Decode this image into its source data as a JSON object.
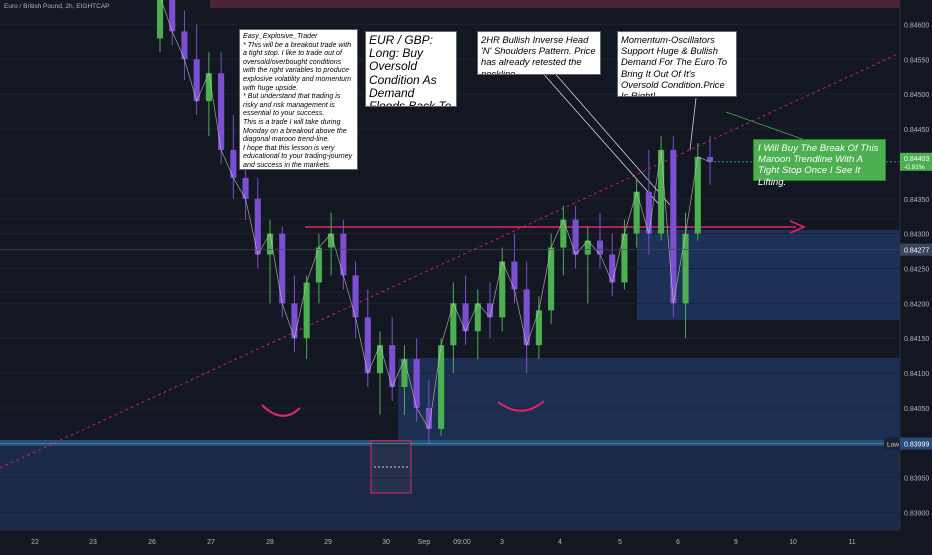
{
  "symbol_title": "Euro / British Pound, 2h, EIGHTCAP",
  "notes": {
    "trader_note": [
      "Easy_Explosive_Trader",
      "* This will be a breakout trade with a tight stop. I like to trade out of oversold/overbought conditions with the right variables to produce explosive volatility and momentum with huge upside.",
      "* But understand that trading is risky and risk management is essential to your success.",
      "This is a trade I will take during Monday on a breakout above the diagonal maroon trend-line.",
      "I hope that this lesson is very educational to your trading-journey and success in the markets."
    ],
    "title_note": "EUR / GBP: Long: Buy Oversold Condition As Demand Floods Back To The Euro",
    "pattern_note": "2HR Bullish Inverse Head 'N' Shoulders Pattern. Price has already retested the neckline.",
    "momentum_note": "Momentum-Oscillators Support Huge & Bullish Demand For The Euro To Bring It Out Of It's Oversold Condition.Price Is Right!",
    "green_note": "I Will Buy The Break Of This Maroon Trendline With A Tight Stop Once I See  It Lifting."
  },
  "price_axis": {
    "ticks": [
      "0.84600",
      "0.84550",
      "0.84500",
      "0.84450",
      "0.84350",
      "0.84300",
      "0.84250",
      "0.84200",
      "0.84150",
      "0.84100",
      "0.84050",
      "0.83950",
      "0.83900"
    ],
    "current_price_label": "0.84403",
    "current_change_label": "-0.91%",
    "level_label": "0.84277",
    "low_tag": "Low",
    "low_value": "0.83999"
  },
  "time_axis": {
    "ticks": [
      "22",
      "23",
      "26",
      "27",
      "28",
      "29",
      "30",
      "Sep",
      "09:00",
      "3",
      "4",
      "5",
      "6",
      "9",
      "10",
      "11"
    ]
  },
  "colors": {
    "background": "#131722",
    "bull": "#4caf50",
    "bear": "#7b4fd1",
    "maroon": "#e0246e",
    "zone": "#1f3358",
    "current_price": "#26a69a"
  },
  "chart_data": {
    "type": "candlestick",
    "title": "Euro / British Pound, 2h, EIGHTCAP",
    "xlabel": "",
    "ylabel": "",
    "ylim": [
      0.83875,
      0.84635
    ],
    "x_ticks": [
      "22",
      "23",
      "26",
      "27",
      "28",
      "29",
      "30",
      "Sep",
      "09:00",
      "3",
      "4",
      "5",
      "6",
      "9",
      "10",
      "11"
    ],
    "series": [
      {
        "values": [
          [
            0.8458,
            0.84655,
            0.8456,
            0.8464
          ],
          [
            0.8464,
            0.84655,
            0.8457,
            0.8459
          ],
          [
            0.8459,
            0.8462,
            0.8452,
            0.8455
          ],
          [
            0.8455,
            0.846,
            0.8447,
            0.8449
          ],
          [
            0.8449,
            0.8456,
            0.8444,
            0.8453
          ],
          [
            0.8453,
            0.8456,
            0.844,
            0.8442
          ],
          [
            0.8442,
            0.8447,
            0.8435,
            0.8438
          ],
          [
            0.8438,
            0.8442,
            0.8432,
            0.8435
          ],
          [
            0.8435,
            0.8438,
            0.8425,
            0.8427
          ],
          [
            0.8427,
            0.8432,
            0.842,
            0.843
          ],
          [
            0.843,
            0.8431,
            0.8418,
            0.842
          ],
          [
            0.842,
            0.8424,
            0.8413,
            0.8415
          ],
          [
            0.8415,
            0.8424,
            0.8412,
            0.8423
          ],
          [
            0.8423,
            0.843,
            0.842,
            0.8428
          ],
          [
            0.8428,
            0.8433,
            0.8424,
            0.843
          ],
          [
            0.843,
            0.8432,
            0.8422,
            0.8424
          ],
          [
            0.8424,
            0.8426,
            0.8415,
            0.8418
          ],
          [
            0.8418,
            0.8422,
            0.8408,
            0.841
          ],
          [
            0.841,
            0.8416,
            0.8404,
            0.8414
          ],
          [
            0.8414,
            0.8418,
            0.8406,
            0.8408
          ],
          [
            0.8408,
            0.8414,
            0.8404,
            0.8412
          ],
          [
            0.8412,
            0.8415,
            0.8403,
            0.8405
          ],
          [
            0.8405,
            0.8409,
            0.83999,
            0.8402
          ],
          [
            0.8402,
            0.8415,
            0.8401,
            0.8414
          ],
          [
            0.8414,
            0.8423,
            0.841,
            0.842
          ],
          [
            0.842,
            0.8424,
            0.8414,
            0.8416
          ],
          [
            0.8416,
            0.8422,
            0.8412,
            0.842
          ],
          [
            0.842,
            0.8423,
            0.8415,
            0.8418
          ],
          [
            0.8418,
            0.8428,
            0.8416,
            0.8426
          ],
          [
            0.8426,
            0.843,
            0.842,
            0.8422
          ],
          [
            0.8422,
            0.8426,
            0.841,
            0.8414
          ],
          [
            0.8414,
            0.8421,
            0.8412,
            0.8419
          ],
          [
            0.8419,
            0.843,
            0.8417,
            0.8428
          ],
          [
            0.8428,
            0.8434,
            0.8424,
            0.8432
          ],
          [
            0.8432,
            0.8434,
            0.8425,
            0.8427
          ],
          [
            0.8427,
            0.8431,
            0.842,
            0.8429
          ],
          [
            0.8429,
            0.8433,
            0.8425,
            0.8427
          ],
          [
            0.8427,
            0.843,
            0.8421,
            0.8423
          ],
          [
            0.8423,
            0.8432,
            0.8422,
            0.843
          ],
          [
            0.843,
            0.8438,
            0.8428,
            0.8436
          ],
          [
            0.8436,
            0.8442,
            0.8427,
            0.843
          ],
          [
            0.843,
            0.8444,
            0.8429,
            0.8442
          ],
          [
            0.8442,
            0.8444,
            0.8418,
            0.842
          ],
          [
            0.842,
            0.8433,
            0.8415,
            0.843
          ],
          [
            0.843,
            0.8443,
            0.8429,
            0.8441
          ],
          [
            0.8441,
            0.8444,
            0.8437,
            0.84403
          ]
        ]
      }
    ],
    "levels": {
      "horizontal_neckline": 0.843,
      "level_label_value": 0.84277,
      "low": 0.83999
    },
    "annotations": [
      "Low"
    ],
    "grid": true
  }
}
